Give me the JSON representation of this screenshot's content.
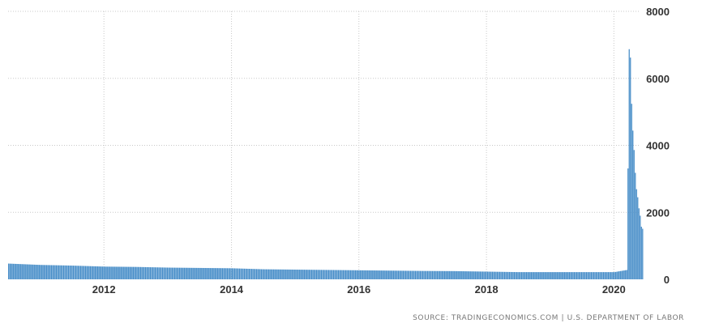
{
  "chart_data": {
    "type": "bar",
    "title": "",
    "xlabel": "",
    "ylabel": "",
    "x_start": "2010-07",
    "x_end": "2020-06",
    "ylim": [
      0,
      8000
    ],
    "yticks": [
      0,
      2000,
      4000,
      6000,
      8000
    ],
    "ytick_labels": [
      "0",
      "2000",
      "4000",
      "6000",
      "8000"
    ],
    "xticks": [
      2012,
      2014,
      2016,
      2018,
      2020
    ],
    "xtick_labels": [
      "2012",
      "2014",
      "2016",
      "2018",
      "2020"
    ],
    "grid": true,
    "bar_color": "#4a8fc9",
    "series_approx": [
      {
        "date": "2010-07",
        "value": 470
      },
      {
        "date": "2011-01",
        "value": 430
      },
      {
        "date": "2011-07",
        "value": 410
      },
      {
        "date": "2012-01",
        "value": 380
      },
      {
        "date": "2012-07",
        "value": 370
      },
      {
        "date": "2013-01",
        "value": 350
      },
      {
        "date": "2013-07",
        "value": 340
      },
      {
        "date": "2014-01",
        "value": 330
      },
      {
        "date": "2014-07",
        "value": 300
      },
      {
        "date": "2015-01",
        "value": 290
      },
      {
        "date": "2015-07",
        "value": 280
      },
      {
        "date": "2016-01",
        "value": 270
      },
      {
        "date": "2016-07",
        "value": 260
      },
      {
        "date": "2017-01",
        "value": 250
      },
      {
        "date": "2017-07",
        "value": 245
      },
      {
        "date": "2018-01",
        "value": 230
      },
      {
        "date": "2018-07",
        "value": 215
      },
      {
        "date": "2019-01",
        "value": 215
      },
      {
        "date": "2019-07",
        "value": 215
      },
      {
        "date": "2020-01",
        "value": 215
      },
      {
        "date": "2020-03-14",
        "value": 280
      },
      {
        "date": "2020-03-21",
        "value": 3310
      },
      {
        "date": "2020-03-28",
        "value": 6870
      },
      {
        "date": "2020-04-04",
        "value": 6620
      },
      {
        "date": "2020-04-11",
        "value": 5240
      },
      {
        "date": "2020-04-18",
        "value": 4440
      },
      {
        "date": "2020-04-25",
        "value": 3860
      },
      {
        "date": "2020-05-02",
        "value": 3180
      },
      {
        "date": "2020-05-09",
        "value": 2690
      },
      {
        "date": "2020-05-16",
        "value": 2450
      },
      {
        "date": "2020-05-23",
        "value": 2120
      },
      {
        "date": "2020-05-30",
        "value": 1900
      },
      {
        "date": "2020-06-06",
        "value": 1570
      },
      {
        "date": "2020-06-13",
        "value": 1510
      }
    ]
  },
  "footer": {
    "source": "SOURCE: TRADINGECONOMICS.COM | U.S. DEPARTMENT OF LABOR"
  }
}
